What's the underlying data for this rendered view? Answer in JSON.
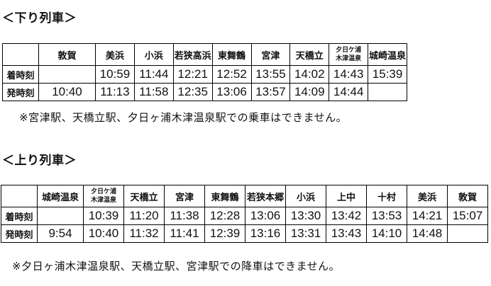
{
  "page": {
    "background": "#ffffff",
    "text_color": "#111111",
    "border_color": "#000000"
  },
  "down": {
    "title": "＜下り列車＞",
    "row_labels": {
      "arrival": "着時刻",
      "departure": "発時刻"
    },
    "stations": [
      {
        "name": "敦賀"
      },
      {
        "name": "美浜"
      },
      {
        "name": "小浜"
      },
      {
        "name": "若狭高浜"
      },
      {
        "name": "東舞鶴"
      },
      {
        "name": "宮津"
      },
      {
        "name": "天橋立"
      },
      {
        "name": "夕日ケ浦木津温泉",
        "lines": [
          "夕日ケ浦",
          "木津温泉"
        ]
      },
      {
        "name": "城崎温泉"
      }
    ],
    "arrival_times": [
      "",
      "10:59",
      "11:44",
      "12:21",
      "12:52",
      "13:55",
      "14:02",
      "14:43",
      "15:39"
    ],
    "departure_times": [
      "10:40",
      "11:13",
      "11:58",
      "12:35",
      "13:06",
      "13:57",
      "14:09",
      "14:44",
      ""
    ],
    "note": "※宮津駅、天橋立駅、夕日ヶ浦木津温泉駅での乗車はできません。"
  },
  "up": {
    "title": "＜上り列車＞",
    "row_labels": {
      "arrival": "着時刻",
      "departure": "発時刻"
    },
    "stations": [
      {
        "name": "城崎温泉"
      },
      {
        "name": "夕日ケ浦木津温泉",
        "lines": [
          "夕日ケ浦",
          "木津温泉"
        ]
      },
      {
        "name": "天橋立"
      },
      {
        "name": "宮津"
      },
      {
        "name": "東舞鶴"
      },
      {
        "name": "若狭本郷"
      },
      {
        "name": "小浜"
      },
      {
        "name": "上中"
      },
      {
        "name": "十村"
      },
      {
        "name": "美浜"
      },
      {
        "name": "敦賀"
      }
    ],
    "arrival_times": [
      "",
      "10:39",
      "11:20",
      "11:38",
      "12:28",
      "13:06",
      "13:30",
      "13:42",
      "13:53",
      "14:21",
      "15:07"
    ],
    "departure_times": [
      "9:54",
      "10:40",
      "11:32",
      "11:41",
      "12:39",
      "13:16",
      "13:31",
      "13:43",
      "14:10",
      "14:48",
      ""
    ],
    "note": "※夕日ヶ浦木津温泉駅、天橋立駅、宮津駅での降車はできません。"
  }
}
